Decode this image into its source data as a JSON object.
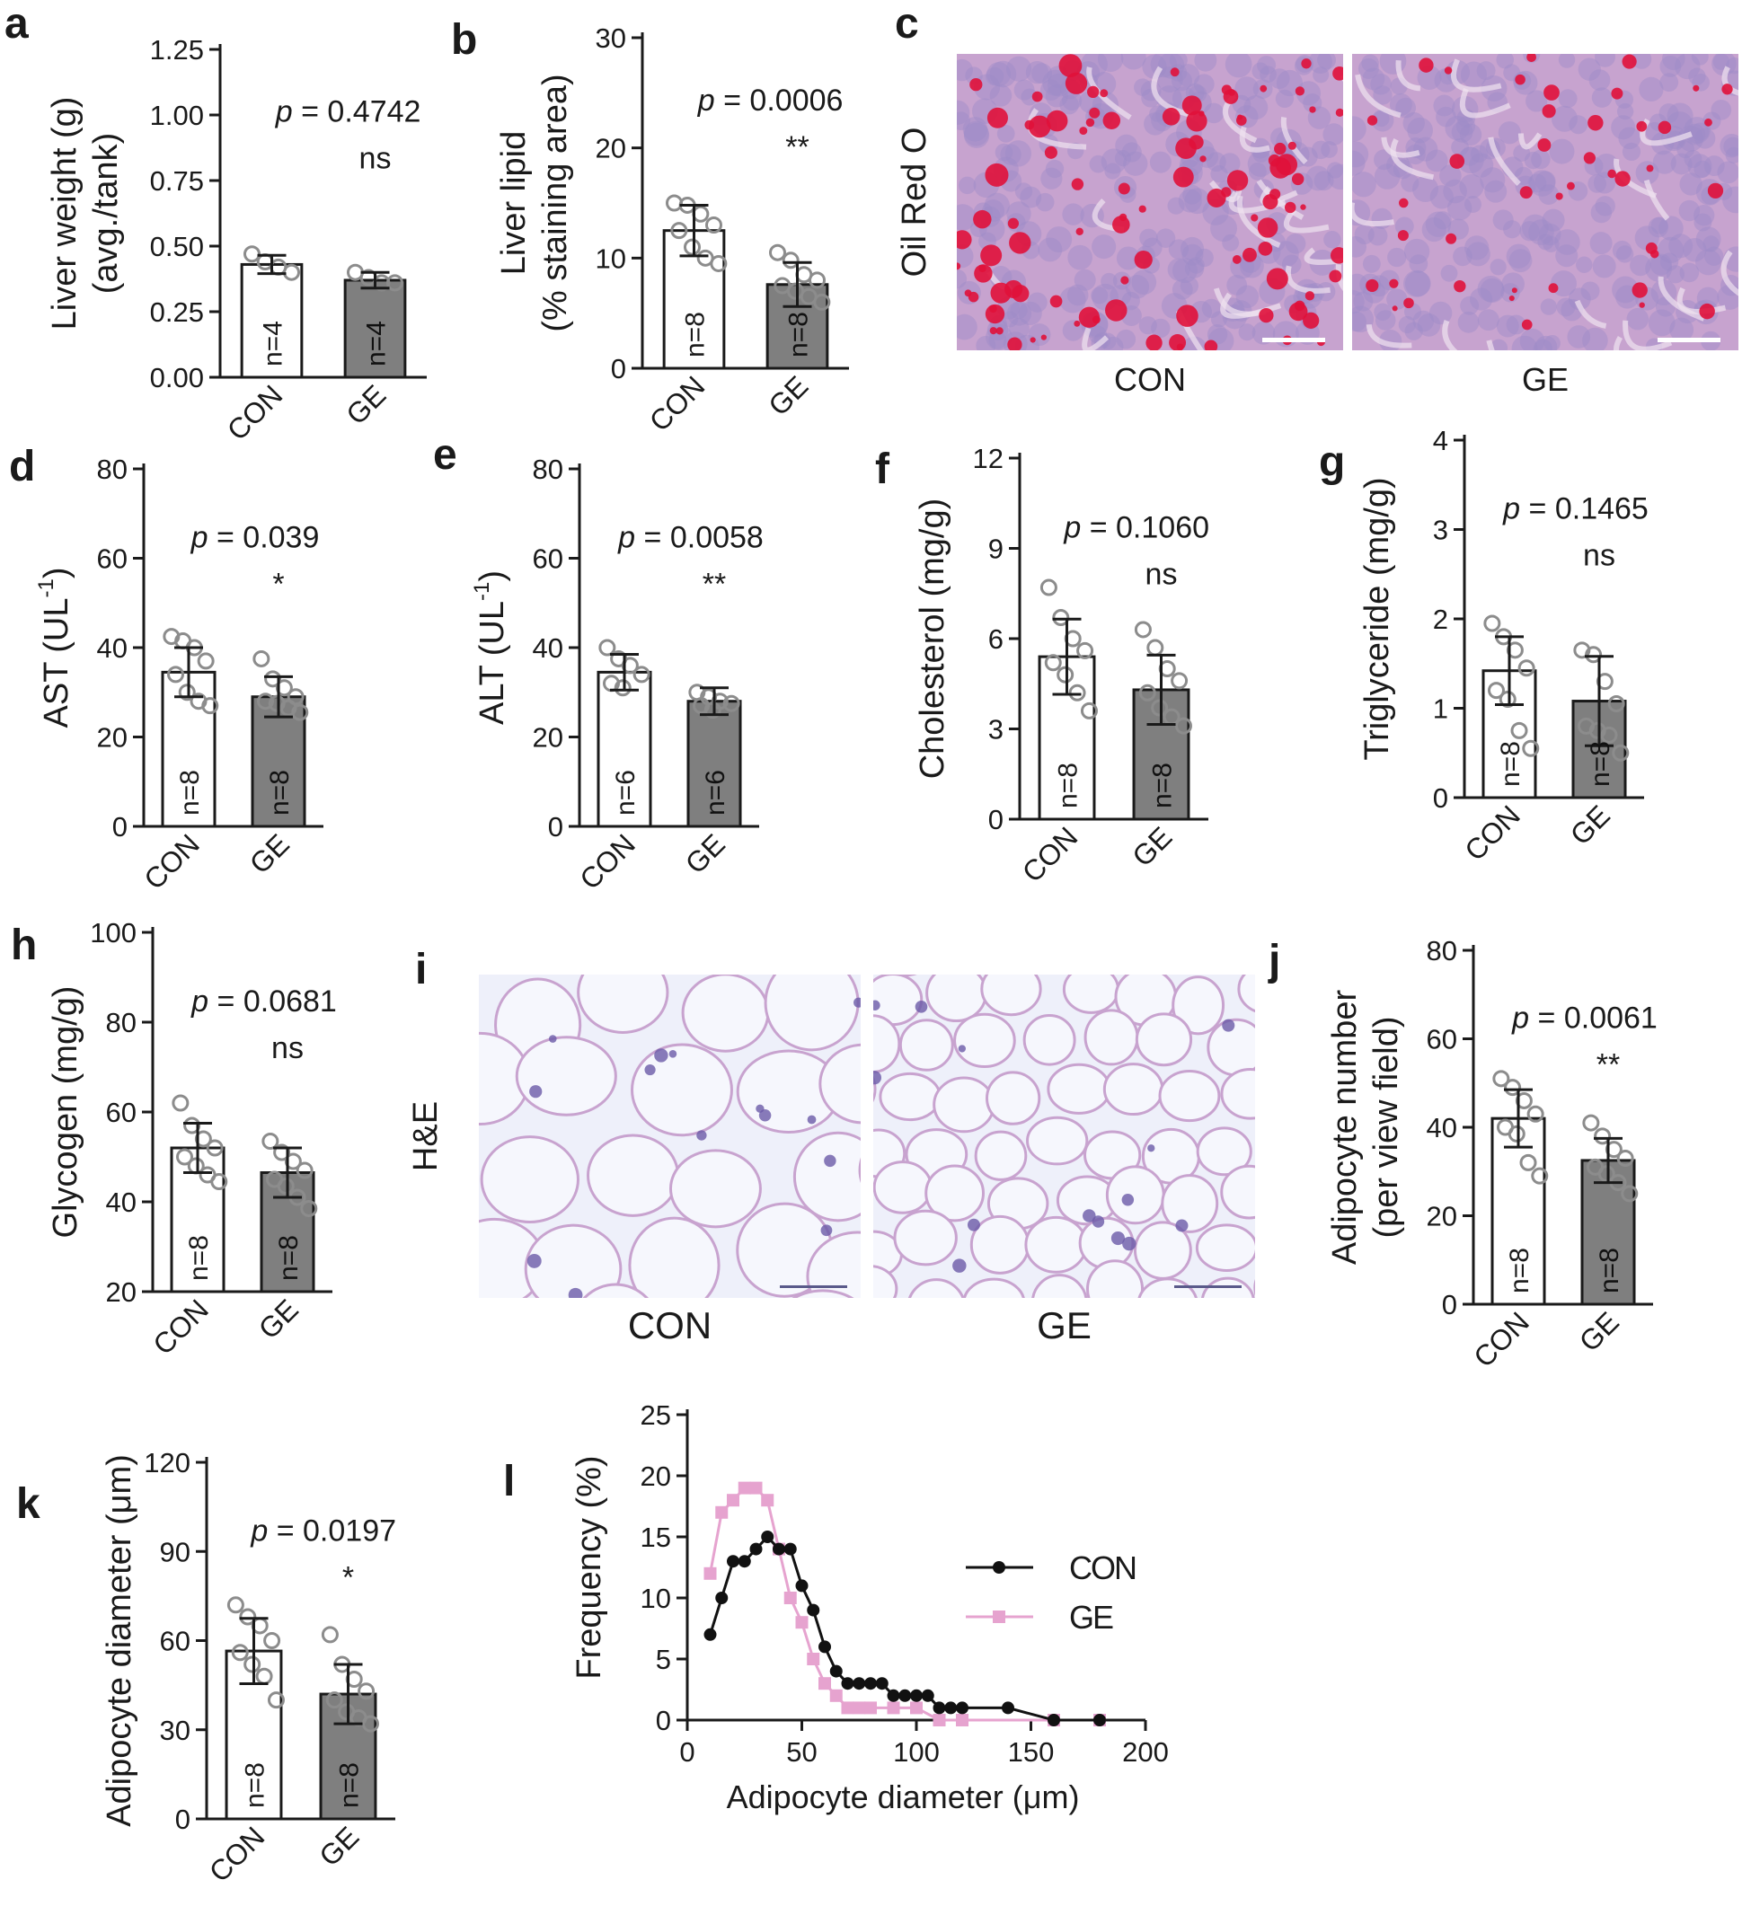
{
  "colors": {
    "con_bar": "#ffffff",
    "ge_bar": "#7f7f7f",
    "axis": "#1a1a1a",
    "point_stroke": "#8c8c8c",
    "con_line": "#111111",
    "ge_line": "#e6a3cf",
    "oil_bg": "#c7a3cf",
    "oil_droplet": "#e0113a",
    "he_bg": "#eef0fa",
    "he_wall": "#c8a3cf"
  },
  "micrographs": {
    "c": {
      "row_label": "Oil Red O",
      "left_label": "CON",
      "right_label": "GE",
      "stain": "oil",
      "con_droplet_density": 0.85,
      "ge_droplet_density": 0.35
    },
    "i": {
      "row_label": "H&E",
      "left_label": "CON",
      "right_label": "GE",
      "stain": "he",
      "con_cell_size": 1.0,
      "ge_cell_size": 0.6
    }
  },
  "chart_data": [
    {
      "panel": "a",
      "type": "bar",
      "ylabel_lines": [
        "Liver weight (g)",
        "(avg./tank)"
      ],
      "categories": [
        "CON",
        "GE"
      ],
      "values": [
        0.43,
        0.37
      ],
      "sd": [
        0.035,
        0.03
      ],
      "points": [
        [
          0.47,
          0.44,
          0.42,
          0.4
        ],
        [
          0.4,
          0.38,
          0.36,
          0.36
        ]
      ],
      "n_labels": [
        "n=4",
        "n=4"
      ],
      "yticks": [
        "0.00",
        "0.25",
        "0.50",
        "0.75",
        "1.00",
        "1.25"
      ],
      "ylim": [
        0,
        1.25
      ],
      "p_value": "= 0.4742",
      "sig": "ns"
    },
    {
      "panel": "b",
      "type": "bar",
      "ylabel_lines": [
        "Liver lipid",
        "(% staining area)"
      ],
      "categories": [
        "CON",
        "GE"
      ],
      "values": [
        12.5,
        7.6
      ],
      "sd": [
        2.3,
        2.0
      ],
      "points": [
        [
          15.0,
          14.8,
          14.0,
          13.0,
          12.5,
          11.0,
          10.0,
          9.5
        ],
        [
          10.5,
          9.8,
          8.5,
          8.0,
          7.5,
          7.0,
          6.5,
          6.0
        ]
      ],
      "n_labels": [
        "n=8",
        "n=8"
      ],
      "yticks": [
        "0",
        "10",
        "20",
        "30"
      ],
      "ylim": [
        0,
        30
      ],
      "p_value": "= 0.0006",
      "sig": "**"
    },
    {
      "panel": "d",
      "type": "bar",
      "ylabel": "AST (UL",
      "ylabel_sup": "-1",
      "ylabel_end": ")",
      "categories": [
        "CON",
        "GE"
      ],
      "values": [
        34.5,
        29.0
      ],
      "sd": [
        5.5,
        4.5
      ],
      "points": [
        [
          42.5,
          41.5,
          40.0,
          37.0,
          34.0,
          30.0,
          28.0,
          27.0
        ],
        [
          37.5,
          33.0,
          31.0,
          29.0,
          28.0,
          27.5,
          26.5,
          25.5
        ]
      ],
      "n_labels": [
        "n=8",
        "n=8"
      ],
      "yticks": [
        "0",
        "20",
        "40",
        "60",
        "80"
      ],
      "ylim": [
        0,
        80
      ],
      "p_value": "= 0.039",
      "sig": "*"
    },
    {
      "panel": "e",
      "type": "bar",
      "ylabel": "ALT (UL",
      "ylabel_sup": "-1",
      "ylabel_end": ")",
      "categories": [
        "CON",
        "GE"
      ],
      "values": [
        34.5,
        28.0
      ],
      "sd": [
        4.0,
        3.0
      ],
      "points": [
        [
          40.0,
          37.5,
          36.0,
          34.0,
          32.0,
          31.0
        ],
        [
          30.0,
          29.0,
          28.0,
          27.5,
          27.0,
          26.0
        ]
      ],
      "n_labels": [
        "n=6",
        "n=6"
      ],
      "yticks": [
        "0",
        "20",
        "40",
        "60",
        "80"
      ],
      "ylim": [
        0,
        80
      ],
      "p_value": "= 0.0058",
      "sig": "**"
    },
    {
      "panel": "f",
      "type": "bar",
      "ylabel": "Cholesterol (mg/g)",
      "categories": [
        "CON",
        "GE"
      ],
      "values": [
        5.4,
        4.3
      ],
      "sd": [
        1.25,
        1.15
      ],
      "points": [
        [
          7.7,
          6.7,
          6.0,
          5.6,
          5.2,
          4.8,
          4.2,
          3.6
        ],
        [
          6.3,
          5.7,
          5.0,
          4.6,
          4.2,
          3.7,
          3.4,
          3.1
        ]
      ],
      "n_labels": [
        "n=8",
        "n=8"
      ],
      "yticks": [
        "0",
        "3",
        "6",
        "9",
        "12"
      ],
      "ylim": [
        0,
        12
      ],
      "p_value": "= 0.1060",
      "sig": "ns"
    },
    {
      "panel": "g",
      "type": "bar",
      "ylabel": "Triglyceride  (mg/g)",
      "categories": [
        "CON",
        "GE"
      ],
      "values": [
        1.42,
        1.08
      ],
      "sd": [
        0.38,
        0.5
      ],
      "points": [
        [
          1.95,
          1.8,
          1.65,
          1.45,
          1.2,
          1.1,
          0.75,
          0.55
        ],
        [
          1.65,
          1.6,
          1.3,
          1.05,
          0.8,
          0.75,
          0.7,
          0.5
        ]
      ],
      "n_labels": [
        "n=8",
        "n=8"
      ],
      "yticks": [
        "0",
        "1",
        "2",
        "3",
        "4"
      ],
      "ylim": [
        0,
        4
      ],
      "p_value": "= 0.1465",
      "sig": "ns"
    },
    {
      "panel": "h",
      "type": "bar",
      "ylabel": "Glycogen (mg/g)",
      "categories": [
        "CON",
        "GE"
      ],
      "values": [
        52.0,
        46.5
      ],
      "sd": [
        5.5,
        5.5
      ],
      "points": [
        [
          62.0,
          57.0,
          54.0,
          52.0,
          50.0,
          48.0,
          46.0,
          44.5
        ],
        [
          53.5,
          51.0,
          49.0,
          47.0,
          45.0,
          43.5,
          41.0,
          38.5
        ]
      ],
      "n_labels": [
        "n=8",
        "n=8"
      ],
      "yticks": [
        "20",
        "40",
        "60",
        "80",
        "100"
      ],
      "ylim": [
        20,
        100
      ],
      "p_value": "= 0.0681",
      "sig": "ns"
    },
    {
      "panel": "j",
      "type": "bar",
      "ylabel_lines": [
        "Adipocyte number",
        "(per view field)"
      ],
      "categories": [
        "CON",
        "GE"
      ],
      "values": [
        42.0,
        32.5
      ],
      "sd": [
        6.5,
        5.0
      ],
      "points": [
        [
          51.0,
          49.0,
          46.0,
          43.0,
          40.0,
          38.5,
          32.0,
          29.0
        ],
        [
          41.0,
          38.0,
          35.0,
          33.0,
          31.0,
          29.5,
          27.5,
          25.0
        ]
      ],
      "n_labels": [
        "n=8",
        "n=8"
      ],
      "yticks": [
        "0",
        "20",
        "40",
        "60",
        "80"
      ],
      "ylim": [
        0,
        80
      ],
      "p_value": "= 0.0061",
      "sig": "**"
    },
    {
      "panel": "k",
      "type": "bar",
      "ylabel": "Adipocyte diameter (μm)",
      "categories": [
        "CON",
        "GE"
      ],
      "values": [
        56.5,
        42.0
      ],
      "sd": [
        11.0,
        10.0
      ],
      "points": [
        [
          72.0,
          68.0,
          65.0,
          60.0,
          56.0,
          52.0,
          48.0,
          40.0
        ],
        [
          62.0,
          52.0,
          47.0,
          43.0,
          40.0,
          36.0,
          34.0,
          32.0
        ]
      ],
      "n_labels": [
        "n=8",
        "n=8"
      ],
      "yticks": [
        "0",
        "30",
        "60",
        "90",
        "120"
      ],
      "ylim": [
        0,
        120
      ],
      "p_value": "= 0.0197",
      "sig": "*"
    },
    {
      "panel": "l",
      "type": "line",
      "xlabel": "Adipocyte diameter (μm)",
      "ylabel": "Frequency (%)",
      "xlim": [
        0,
        200
      ],
      "ylim": [
        0,
        25
      ],
      "xticks": [
        "0",
        "50",
        "100",
        "150",
        "200"
      ],
      "yticks": [
        "0",
        "5",
        "10",
        "15",
        "20",
        "25"
      ],
      "legend_position": "right",
      "series": [
        {
          "name": "CON",
          "marker": "circle",
          "x": [
            10,
            15,
            20,
            25,
            30,
            35,
            40,
            45,
            50,
            55,
            60,
            65,
            70,
            75,
            80,
            85,
            90,
            95,
            100,
            105,
            110,
            115,
            120,
            140,
            160,
            180
          ],
          "y": [
            7,
            10,
            13,
            13,
            14,
            15,
            14,
            14,
            11,
            9,
            6,
            4,
            3,
            3,
            3,
            3,
            2,
            2,
            2,
            2,
            1,
            1,
            1,
            1,
            0,
            0
          ]
        },
        {
          "name": "GE",
          "marker": "square",
          "x": [
            10,
            15,
            20,
            25,
            30,
            35,
            40,
            45,
            50,
            55,
            60,
            65,
            70,
            75,
            80,
            90,
            100,
            110,
            120,
            160,
            180
          ],
          "y": [
            12,
            17,
            18,
            19,
            19,
            18,
            14,
            10,
            8,
            5,
            3,
            2,
            1,
            1,
            1,
            1,
            1,
            0,
            0,
            0,
            0
          ]
        }
      ]
    }
  ],
  "panel_letters": {
    "a": "a",
    "b": "b",
    "c": "c",
    "d": "d",
    "e": "e",
    "f": "f",
    "g": "g",
    "h": "h",
    "i": "i",
    "j": "j",
    "k": "k",
    "l": "l"
  },
  "p_symbol": "p"
}
